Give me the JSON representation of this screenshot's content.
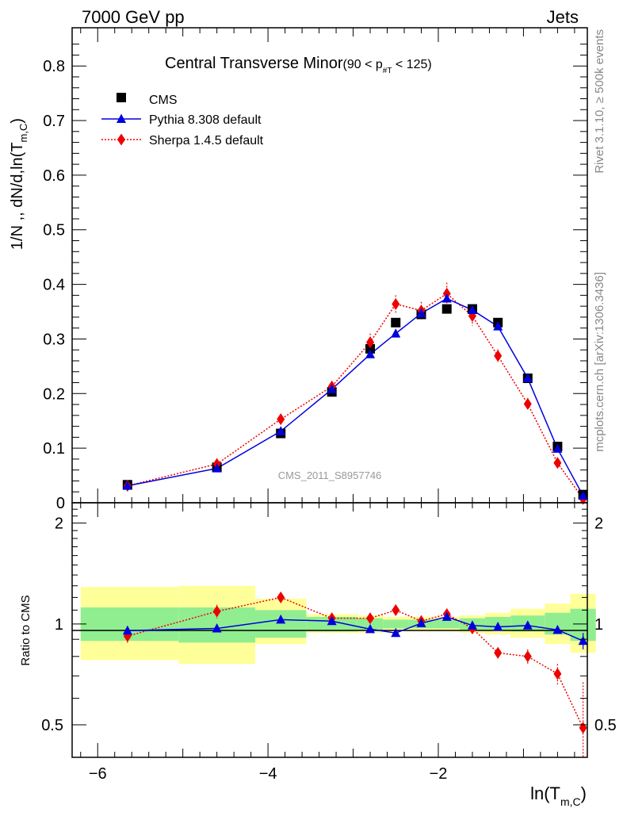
{
  "header": {
    "left": "7000 GeV pp",
    "right": "Jets"
  },
  "title": {
    "main": "Central Transverse Minor",
    "sub_pre": "(90 < p",
    "sub_subscript": "#T",
    "sub_post": " < 125)"
  },
  "side_text": {
    "rivet": "Rivet 3.1.10, ≥ 500k events",
    "mcplots": "mcplots.cern.ch [arXiv:1306.3436]"
  },
  "watermark": "CMS_2011_S8957746",
  "axes": {
    "main_ylabel_pre": "1/N ,, dN/d,ln(T",
    "main_ylabel_sub": "m,C",
    "main_ylabel_post": ")",
    "ratio_ylabel": "Ratio to CMS",
    "xlabel_pre": "ln(T",
    "xlabel_sub": "m,C",
    "xlabel_post": ")",
    "main_yticks": [
      "0",
      "0.1",
      "0.2",
      "0.3",
      "0.4",
      "0.5",
      "0.6",
      "0.7",
      "0.8"
    ],
    "ratio_yticks_left": [
      "0.5",
      "1",
      "2"
    ],
    "ratio_yticks_right": [
      "0.5",
      "1",
      "2"
    ],
    "xticks": [
      "−6",
      "−4",
      "−2"
    ]
  },
  "legend": {
    "cms": "CMS",
    "pythia": "Pythia 8.308 default",
    "sherpa": "Sherpa 1.4.5 default"
  },
  "colors": {
    "cms": "#000000",
    "pythia": "#0000dd",
    "sherpa": "#ee0000",
    "band_inner": "#90ee90",
    "band_outer": "#ffff99"
  },
  "chart_data": [
    {
      "type": "line",
      "panel": "main",
      "xlim": [
        -6.3,
        -0.25
      ],
      "ylim": [
        0,
        0.87
      ],
      "grid": false,
      "legend_position": "top-left",
      "x": [
        -5.65,
        -4.6,
        -3.85,
        -3.25,
        -2.8,
        -2.5,
        -2.2,
        -1.9,
        -1.6,
        -1.3,
        -0.95,
        -0.6,
        -0.3
      ],
      "series": [
        {
          "name": "CMS",
          "style": "markers-square",
          "values": [
            0.033,
            0.065,
            0.127,
            0.203,
            0.282,
            0.33,
            0.345,
            0.355,
            0.355,
            0.33,
            0.228,
            0.103,
            0.015
          ]
        },
        {
          "name": "Pythia 8.308 default",
          "style": "line-triangle",
          "values": [
            0.031,
            0.063,
            0.131,
            0.208,
            0.272,
            0.31,
            0.347,
            0.374,
            0.353,
            0.323,
            0.228,
            0.099,
            0.013
          ]
        },
        {
          "name": "Sherpa 1.4.5 default",
          "style": "dotted-diamond",
          "values": [
            0.031,
            0.071,
            0.153,
            0.213,
            0.294,
            0.364,
            0.352,
            0.383,
            0.342,
            0.269,
            0.181,
            0.073,
            0.007
          ],
          "errors": [
            0.002,
            0.003,
            0.007,
            0.008,
            0.016,
            0.016,
            0.016,
            0.02,
            0.018,
            0.012,
            0.011,
            0.005,
            0.003
          ]
        }
      ]
    },
    {
      "type": "line",
      "panel": "ratio",
      "xlim": [
        -6.3,
        -0.25
      ],
      "ylim": [
        0.4,
        2.3
      ],
      "y_scale": "log",
      "grid": false,
      "reference_line": 1,
      "x": [
        -5.65,
        -4.6,
        -3.85,
        -3.25,
        -2.8,
        -2.5,
        -2.2,
        -1.9,
        -1.6,
        -1.3,
        -0.95,
        -0.6,
        -0.3
      ],
      "bands": {
        "edges": [
          -6.2,
          -5.05,
          -4.15,
          -3.55,
          -2.95,
          -2.65,
          -2.35,
          -2.05,
          -1.75,
          -1.45,
          -1.15,
          -0.75,
          -0.45,
          -0.15
        ],
        "inner_low": [
          0.89,
          0.88,
          0.91,
          0.95,
          0.96,
          0.97,
          0.97,
          0.97,
          0.96,
          0.96,
          0.95,
          0.93,
          0.89
        ],
        "inner_high": [
          1.12,
          1.12,
          1.1,
          1.05,
          1.04,
          1.03,
          1.03,
          1.03,
          1.04,
          1.05,
          1.06,
          1.08,
          1.11
        ],
        "outer_low": [
          0.78,
          0.76,
          0.87,
          0.94,
          0.94,
          0.95,
          0.95,
          0.95,
          0.94,
          0.93,
          0.91,
          0.87,
          0.82
        ],
        "outer_high": [
          1.29,
          1.3,
          1.19,
          1.07,
          1.06,
          1.05,
          1.05,
          1.05,
          1.06,
          1.08,
          1.11,
          1.15,
          1.23
        ]
      },
      "series": [
        {
          "name": "Pythia 8.308 default",
          "style": "line-triangle",
          "values": [
            0.955,
            0.97,
            1.03,
            1.02,
            0.965,
            0.94,
            1.005,
            1.05,
            0.99,
            0.98,
            0.99,
            0.96,
            0.89
          ],
          "errors": [
            0.03,
            0.01,
            0.01,
            0.01,
            0.01,
            0.01,
            0.01,
            0.01,
            0.01,
            0.01,
            0.01,
            0.02,
            0.05
          ]
        },
        {
          "name": "Sherpa 1.4.5 default",
          "style": "dotted-diamond",
          "values": [
            0.92,
            1.09,
            1.2,
            1.04,
            1.04,
            1.1,
            1.02,
            1.07,
            0.97,
            0.82,
            0.8,
            0.71,
            0.49
          ],
          "errors": [
            0.05,
            0.05,
            0.04,
            0.03,
            0.03,
            0.04,
            0.04,
            0.04,
            0.04,
            0.03,
            0.04,
            0.05,
            0.18
          ]
        }
      ]
    }
  ]
}
